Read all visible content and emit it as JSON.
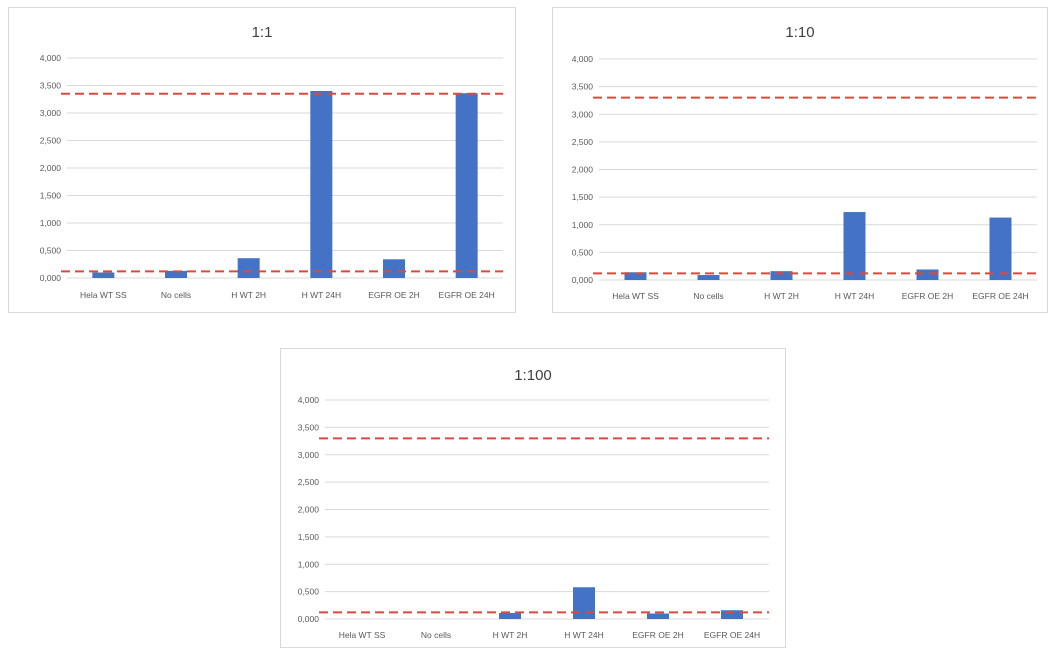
{
  "chart_data": [
    {
      "type": "bar",
      "title": "1:1",
      "categories": [
        "Hela WT SS",
        "No cells",
        "H WT 2H",
        "H WT 24H",
        "EGFR OE 2H",
        "EGFR OE 24H"
      ],
      "values": [
        0.1,
        0.13,
        0.36,
        3.4,
        0.34,
        3.36
      ],
      "ylim": [
        0,
        4
      ],
      "yticks": [
        "0,000",
        "0,500",
        "1,000",
        "1,500",
        "2,000",
        "2,500",
        "3,000",
        "3,500",
        "4,000"
      ],
      "thresholds": [
        3.35,
        0.12
      ],
      "grid": true,
      "bar_color": "#4472c4",
      "threshold_color": "#e0473a"
    },
    {
      "type": "bar",
      "title": "1:10",
      "categories": [
        "Hela WT SS",
        "No cells",
        "H WT 2H",
        "H WT 24H",
        "EGFR OE 2H",
        "EGFR OE 24H"
      ],
      "values": [
        0.14,
        0.09,
        0.16,
        1.23,
        0.19,
        1.13
      ],
      "ylim": [
        0,
        4
      ],
      "yticks": [
        "0,000",
        "0,500",
        "1,000",
        "1,500",
        "2,000",
        "2,500",
        "3,000",
        "3,500",
        "4,000"
      ],
      "thresholds": [
        3.3,
        0.12
      ],
      "grid": true,
      "bar_color": "#4472c4",
      "threshold_color": "#e0473a"
    },
    {
      "type": "bar",
      "title": "1:100",
      "categories": [
        "Hela WT SS",
        "No cells",
        "H WT 2H",
        "H WT 24H",
        "EGFR OE 2H",
        "EGFR OE 24H"
      ],
      "values": [
        0,
        0,
        0.11,
        0.58,
        0.1,
        0.16
      ],
      "ylim": [
        0,
        4
      ],
      "yticks": [
        "0,000",
        "0,500",
        "1,000",
        "1,500",
        "2,000",
        "2,500",
        "3,000",
        "3,500",
        "4,000"
      ],
      "thresholds": [
        3.3,
        0.12
      ],
      "grid": true,
      "bar_color": "#4472c4",
      "threshold_color": "#e0473a"
    }
  ]
}
